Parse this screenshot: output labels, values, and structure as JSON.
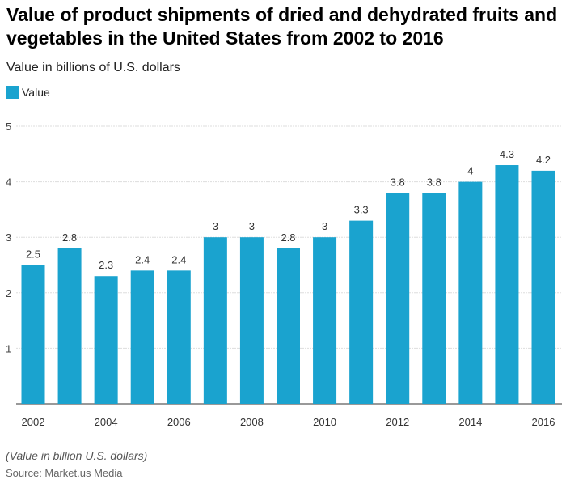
{
  "chart_data": {
    "type": "bar",
    "title": "Value of product shipments of dried and dehydrated fruits and vegetables in the United States from 2002 to 2016",
    "subtitle": "Value in billions of U.S. dollars",
    "categories": [
      "2002",
      "2003",
      "2004",
      "2005",
      "2006",
      "2007",
      "2008",
      "2009",
      "2010",
      "2011",
      "2012",
      "2013",
      "2014",
      "2015",
      "2016"
    ],
    "x_tick_labels": [
      "2002",
      "2004",
      "2006",
      "2008",
      "2010",
      "2012",
      "2014",
      "2016"
    ],
    "series": [
      {
        "name": "Value",
        "values": [
          2.5,
          2.8,
          2.3,
          2.4,
          2.4,
          3,
          3,
          2.8,
          3,
          3.3,
          3.8,
          3.8,
          4,
          4.3,
          4.2
        ]
      }
    ],
    "y_ticks": [
      "1",
      "2",
      "3",
      "4",
      "5"
    ],
    "ylim": [
      0,
      5
    ],
    "grid": true,
    "legend_placement": "top-left",
    "bar_color": "#1aa3cf"
  },
  "footer": {
    "note": "(Value in billion U.S. dollars)",
    "source": "Source: Market.us Media"
  }
}
